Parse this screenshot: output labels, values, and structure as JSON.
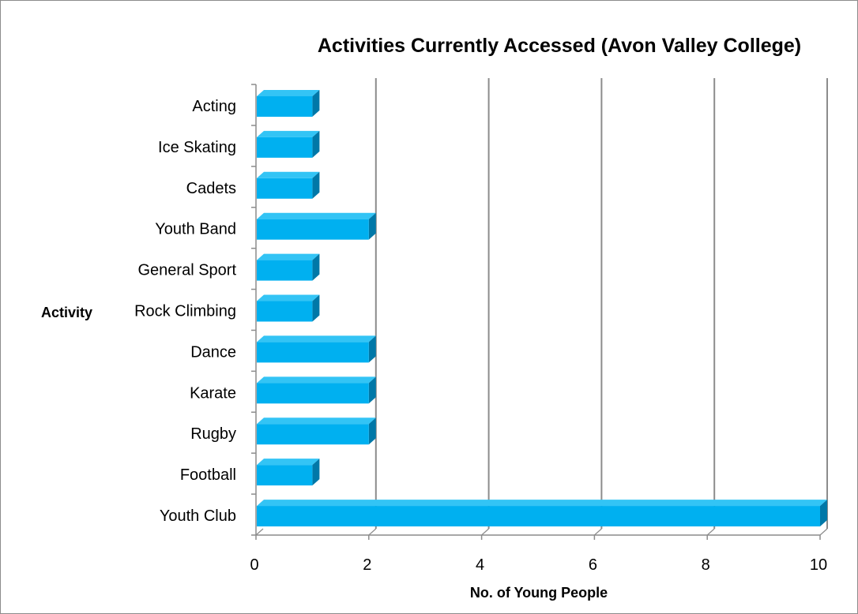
{
  "chart_data": {
    "type": "bar",
    "orientation": "horizontal",
    "title": "Activities Currently Accessed (Avon Valley College)",
    "xlabel": "No. of Young People",
    "ylabel": "Activity",
    "categories": [
      "Youth Club",
      "Football",
      "Rugby",
      "Karate",
      "Dance",
      "Rock Climbing",
      "General Sport",
      "Youth Band",
      "Cadets",
      "Ice Skating",
      "Acting"
    ],
    "values": [
      10,
      1,
      2,
      2,
      2,
      1,
      1,
      2,
      1,
      1,
      1
    ],
    "xlim": [
      0,
      10
    ],
    "xticks": [
      "0",
      "2",
      "4",
      "6",
      "8",
      "10"
    ],
    "grid": "vertical",
    "legend": "none",
    "style": "3d-bar",
    "colors": {
      "bar_front": "#00B0F0",
      "bar_top": "#33C4F5",
      "bar_side": "#0078A8",
      "gridline": "#8c8c8c",
      "axis": "#8c8c8c"
    }
  }
}
